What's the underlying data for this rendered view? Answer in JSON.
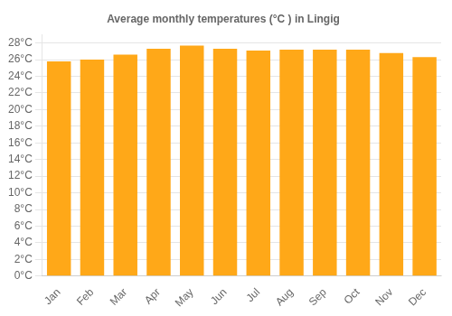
{
  "chart_data": {
    "type": "bar",
    "title": "Average monthly temperatures (°C ) in Lingig",
    "categories": [
      "Jan",
      "Feb",
      "Mar",
      "Apr",
      "May",
      "Jun",
      "Jul",
      "Aug",
      "Sep",
      "Oct",
      "Nov",
      "Dec"
    ],
    "values": [
      25.8,
      26.0,
      26.6,
      27.3,
      27.7,
      27.3,
      27.1,
      27.2,
      27.2,
      27.2,
      26.8,
      26.3
    ],
    "color": "#FFA818",
    "ylim": [
      0,
      29
    ],
    "yticks": [
      {
        "value": 0,
        "label": "0°C"
      },
      {
        "value": 2,
        "label": "2°C"
      },
      {
        "value": 4,
        "label": "4°C"
      },
      {
        "value": 6,
        "label": "6°C"
      },
      {
        "value": 8,
        "label": "8°C"
      },
      {
        "value": 10,
        "label": "10°C"
      },
      {
        "value": 12,
        "label": "12°C"
      },
      {
        "value": 14,
        "label": "14°C"
      },
      {
        "value": 16,
        "label": "16°C"
      },
      {
        "value": 18,
        "label": "18°C"
      },
      {
        "value": 20,
        "label": "20°C"
      },
      {
        "value": 22,
        "label": "22°C"
      },
      {
        "value": 24,
        "label": "24°C"
      },
      {
        "value": 26,
        "label": "26°C"
      },
      {
        "value": 28,
        "label": "28°C"
      }
    ],
    "grid": true
  }
}
